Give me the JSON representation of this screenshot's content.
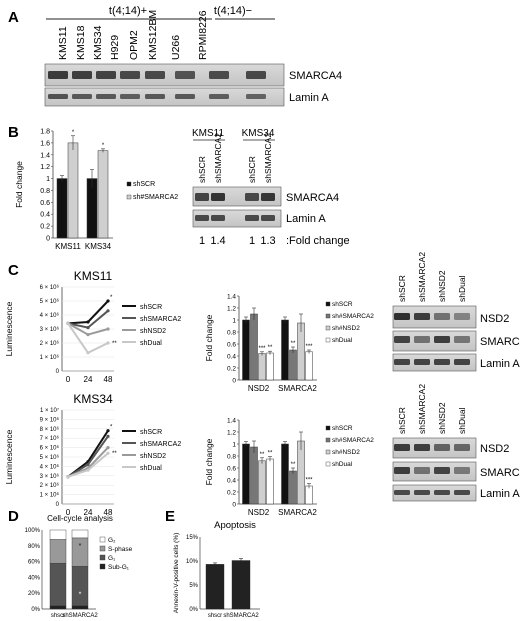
{
  "panels": {
    "A": {
      "letter": "A",
      "group_plus": "t(4;14)+",
      "group_minus": "t(4;14)−",
      "lanes": [
        "KMS11",
        "KMS18",
        "KMS34",
        "H929",
        "OPM2",
        "KMS12BM",
        "U266",
        "RPMI8226"
      ],
      "blot_labels": [
        "SMARCA4",
        "Lamin A"
      ]
    },
    "B": {
      "letter": "B",
      "blot_group_labels": [
        "KMS11",
        "KMS34"
      ],
      "blot_lanes": [
        "shSCR",
        "shSMARCA2",
        "shSCR",
        "shSMARCA2"
      ],
      "blot_labels": [
        "SMARCA4",
        "Lamin A"
      ],
      "fold_values": [
        "1",
        "1.4",
        "1",
        "1.3"
      ],
      "fold_label": ":Fold change"
    },
    "C": {
      "letter": "C",
      "top_title": "KMS11",
      "bottom_title": "KMS34",
      "line_ylabel": "Luminescence",
      "bar_ylabel": "Fold change",
      "top_blot_lanes": [
        "shSCR",
        "shSMARCA2",
        "shNSD2",
        "shDual"
      ],
      "bottom_blot_lanes": [
        "shSCR",
        "shSMARCA2",
        "shNSD2",
        "shDual"
      ],
      "blot_labels": [
        "NSD2",
        "SMARCA2",
        "Lamin A"
      ]
    },
    "D": {
      "letter": "D",
      "title": "Cell-cycle analysis"
    },
    "E": {
      "letter": "E",
      "title": "Apoptosis"
    }
  },
  "chart_data": [
    {
      "id": "B-bar",
      "type": "bar",
      "ylabel": "Fold change",
      "categories": [
        "KMS11",
        "KMS34"
      ],
      "ylim": [
        0,
        1.8
      ],
      "yticks": [
        "0",
        "0.2",
        "0.4",
        "0.6",
        "0.8",
        "1",
        "1.2",
        "1.4",
        "1.6",
        "1.8"
      ],
      "series": [
        {
          "name": "shSCR",
          "values": [
            1,
            1
          ],
          "errors": [
            0.05,
            0.15
          ],
          "color": "#111111"
        },
        {
          "name": "sh#SMARCA2",
          "values": [
            1.6,
            1.47
          ],
          "errors": [
            0.12,
            0.03
          ],
          "color": "#cfcfcf"
        }
      ],
      "annotations": [
        "*",
        "*"
      ]
    },
    {
      "id": "C-line-KMS11",
      "type": "line",
      "title": "KMS11",
      "ylabel": "Luminescence",
      "x": [
        "0",
        "24",
        "48"
      ],
      "yticks": [
        "0",
        "1 × 10⁶",
        "2 × 10⁶",
        "3 × 10⁶",
        "4 × 10⁶",
        "5 × 10⁶",
        "6 × 10⁶"
      ],
      "ylim": [
        0,
        6000000
      ],
      "series": [
        {
          "name": "shSCR",
          "values": [
            3400000,
            3500000,
            5000000
          ],
          "color": "#111111"
        },
        {
          "name": "shSMARCA2",
          "values": [
            3400000,
            3100000,
            4300000
          ],
          "color": "#555555"
        },
        {
          "name": "shNSD2",
          "values": [
            3400000,
            2600000,
            3000000
          ],
          "color": "#9a9a9a"
        },
        {
          "name": "shDual",
          "values": [
            3400000,
            1300000,
            2000000
          ],
          "color": "#c8c8c8"
        }
      ],
      "annotations": [
        "*",
        "**"
      ]
    },
    {
      "id": "C-bar-KMS11",
      "type": "bar",
      "ylabel": "Fold change",
      "categories": [
        "NSD2",
        "SMARCA2"
      ],
      "ylim": [
        0,
        1.4
      ],
      "yticks": [
        "0",
        "0.2",
        "0.4",
        "0.6",
        "0.8",
        "1",
        "1.2",
        "1.4"
      ],
      "series": [
        {
          "name": "shSCR",
          "values": [
            1,
            1
          ],
          "errors": [
            0.05,
            0.05
          ],
          "color": "#111111"
        },
        {
          "name": "sh#SMARCA2",
          "values": [
            1.1,
            0.5
          ],
          "errors": [
            0.1,
            0.05
          ],
          "color": "#777777"
        },
        {
          "name": "sh#NSD2",
          "values": [
            0.44,
            0.95
          ],
          "errors": [
            0.03,
            0.15
          ],
          "color": "#cfcfcf"
        },
        {
          "name": "shDual",
          "values": [
            0.45,
            0.47
          ],
          "errors": [
            0.03,
            0.03
          ],
          "color": "#ffffff"
        }
      ],
      "annotations": [
        "***",
        "**",
        "**",
        "***"
      ]
    },
    {
      "id": "C-line-KMS34",
      "type": "line",
      "title": "KMS34",
      "ylabel": "Luminescence",
      "x": [
        "0",
        "24",
        "48"
      ],
      "yticks": [
        "0",
        "1 × 10⁶",
        "2 × 10⁶",
        "3 × 10⁶",
        "4 × 10⁶",
        "5 × 10⁶",
        "6 × 10⁶",
        "7 × 10⁶",
        "8 × 10⁶",
        "9 × 10⁶",
        "1 × 10⁷"
      ],
      "ylim": [
        0,
        10000000
      ],
      "series": [
        {
          "name": "shSCR",
          "values": [
            2900000,
            4500000,
            7800000
          ],
          "color": "#111111"
        },
        {
          "name": "shSMARCA2",
          "values": [
            2900000,
            4200000,
            7200000
          ],
          "color": "#555555"
        },
        {
          "name": "shNSD2",
          "values": [
            2900000,
            3800000,
            6000000
          ],
          "color": "#9a9a9a"
        },
        {
          "name": "shDual",
          "values": [
            2900000,
            3600000,
            5400000
          ],
          "color": "#c8c8c8"
        }
      ],
      "annotations": [
        "*",
        "**"
      ]
    },
    {
      "id": "C-bar-KMS34",
      "type": "bar",
      "ylabel": "Fold change",
      "categories": [
        "NSD2",
        "SMARCA2"
      ],
      "ylim": [
        0,
        1.4
      ],
      "yticks": [
        "0",
        "0.2",
        "0.4",
        "0.6",
        "0.8",
        "1",
        "1.2",
        "1.4"
      ],
      "series": [
        {
          "name": "shSCR",
          "values": [
            1,
            1
          ],
          "errors": [
            0.04,
            0.04
          ],
          "color": "#111111"
        },
        {
          "name": "sh#SMARCA2",
          "values": [
            0.95,
            0.55
          ],
          "errors": [
            0.1,
            0.05
          ],
          "color": "#777777"
        },
        {
          "name": "sh#NSD2",
          "values": [
            0.72,
            1.05
          ],
          "errors": [
            0.05,
            0.15
          ],
          "color": "#cfcfcf"
        },
        {
          "name": "shDual",
          "values": [
            0.75,
            0.3
          ],
          "errors": [
            0.04,
            0.04
          ],
          "color": "#ffffff"
        }
      ],
      "annotations": [
        "**",
        "**",
        "**",
        "***"
      ]
    },
    {
      "id": "D-stacked",
      "type": "bar",
      "title": "Cell-cycle analysis",
      "categories": [
        "shscr",
        "shSMARCA2"
      ],
      "ylim": [
        0,
        100
      ],
      "yticks": [
        "0%",
        "20%",
        "40%",
        "60%",
        "80%",
        "100%"
      ],
      "series": [
        {
          "name": "Sub-G₁",
          "values": [
            4,
            4
          ],
          "color": "#222222"
        },
        {
          "name": "G₁",
          "values": [
            54,
            50
          ],
          "color": "#555555"
        },
        {
          "name": "S-phase",
          "values": [
            30,
            36
          ],
          "color": "#999999"
        },
        {
          "name": "G₂",
          "values": [
            12,
            10
          ],
          "color": "#ffffff"
        }
      ],
      "annotations": [
        "*",
        "*"
      ]
    },
    {
      "id": "E-bar",
      "type": "bar",
      "title": "Apoptosis",
      "ylabel": "Annexin-V-positive cells (%)",
      "categories": [
        "shscr",
        "shSMARCA2"
      ],
      "ylim": [
        0,
        15
      ],
      "yticks": [
        "0%",
        "5%",
        "10%",
        "15%"
      ],
      "series": [
        {
          "name": "",
          "values": [
            9.3,
            10.1
          ],
          "errors": [
            0.3,
            0.4
          ],
          "color": "#222222"
        }
      ]
    }
  ]
}
